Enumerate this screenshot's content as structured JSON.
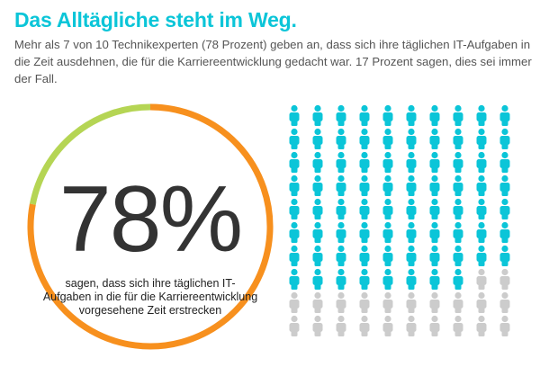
{
  "header": {
    "title": "Das Alltägliche steht im Weg.",
    "subtitle": "Mehr als 7 von 10 Technikexperten (78 Prozent) geben an, dass sich ihre täglichen IT-Aufgaben in die Zeit ausdehnen, die für die Karriereentwicklung gedacht war. 17 Prozent sagen, dies sei immer der Fall."
  },
  "chart_data": [
    {
      "type": "pie",
      "style": "ring",
      "values": [
        78,
        22
      ],
      "colors": [
        "#f7901e",
        "#b5d554"
      ],
      "label": "78%",
      "caption": "sagen, dass sich ihre täglichen IT-Aufgaben in die für die Karriereentwicklung vorgesehene Zeit erstrecken"
    },
    {
      "type": "pictogram",
      "rows": 10,
      "columns": 10,
      "highlighted": 78,
      "total": 100,
      "icon": "person-icon",
      "colors": {
        "highlighted": "#0bc5d8",
        "rest": "#cccccc"
      }
    }
  ]
}
